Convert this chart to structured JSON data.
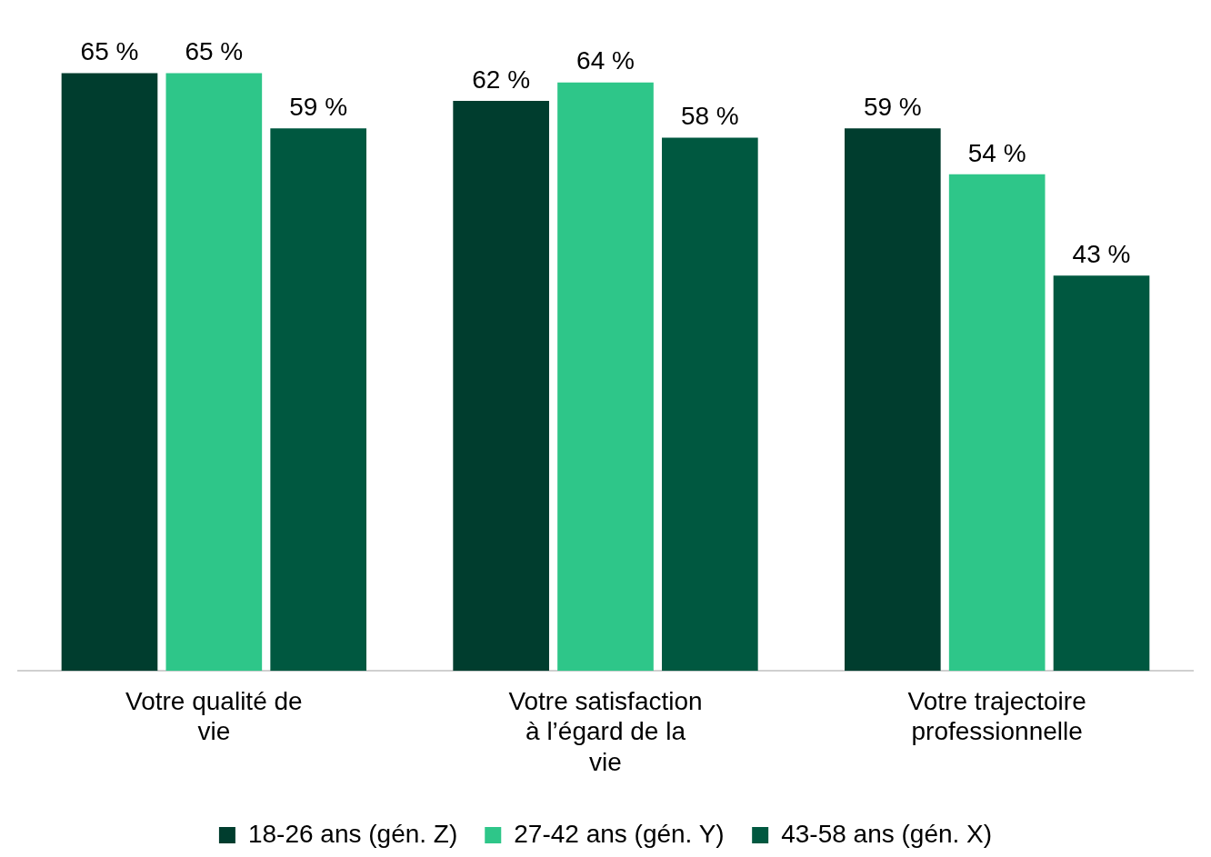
{
  "chart_data": {
    "type": "bar",
    "categories": [
      "Votre qualité de vie",
      "Votre satisfaction à l’égard de la vie",
      "Votre trajectoire professionnelle"
    ],
    "series": [
      {
        "name": "18-26 ans (gén. Z)",
        "color": "#003d2e",
        "values": [
          65,
          62,
          59
        ],
        "value_labels": [
          "65 %",
          "62 %",
          "59 %"
        ]
      },
      {
        "name": "27-42 ans (gén. Y)",
        "color": "#2ec689",
        "values": [
          65,
          64,
          54
        ],
        "value_labels": [
          "65 %",
          "64 %",
          "54 %"
        ]
      },
      {
        "name": "43-58 ans (gén. X)",
        "color": "#005840",
        "values": [
          59,
          58,
          43
        ],
        "value_labels": [
          "59 %",
          "58 %",
          "43 %"
        ]
      }
    ],
    "legend": "bottom",
    "grid": false
  }
}
